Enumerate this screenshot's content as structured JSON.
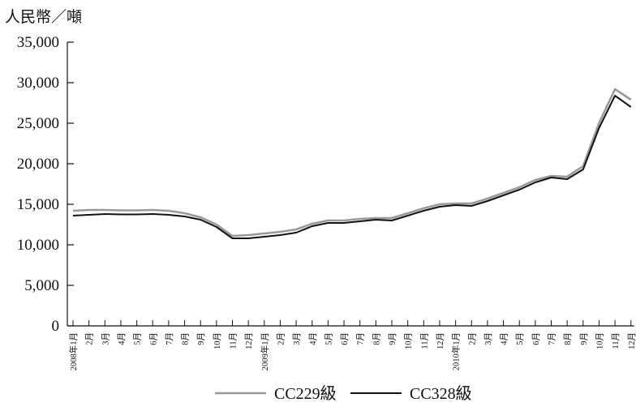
{
  "chart_data": {
    "type": "line",
    "unit_label": "人民幣／噸",
    "yticks": [
      "0",
      "5,000",
      "10,000",
      "15,000",
      "20,000",
      "25,000",
      "30,000",
      "35,000"
    ],
    "ylim": [
      0,
      35000
    ],
    "x": [
      "2008年1月",
      "2月",
      "3月",
      "4月",
      "5月",
      "6月",
      "7月",
      "8月",
      "9月",
      "10月",
      "11月",
      "12月",
      "2009年1月",
      "2月",
      "3月",
      "4月",
      "5月",
      "6月",
      "7月",
      "8月",
      "9月",
      "10月",
      "11月",
      "12月",
      "2010年1月",
      "2月",
      "3月",
      "4月",
      "5月",
      "6月",
      "7月",
      "8月",
      "9月",
      "10月",
      "11月",
      "12月"
    ],
    "series": [
      {
        "name": "CC229級",
        "color": "#999999",
        "values": [
          14200,
          14300,
          14300,
          14250,
          14250,
          14300,
          14200,
          13900,
          13400,
          12500,
          11100,
          11200,
          11400,
          11600,
          11900,
          12600,
          13000,
          13000,
          13200,
          13300,
          13300,
          13900,
          14500,
          15000,
          15100,
          15100,
          15700,
          16400,
          17100,
          18000,
          18500,
          18400,
          19700,
          25000,
          29200,
          27900
        ]
      },
      {
        "name": "CC328級",
        "color": "#111111",
        "values": [
          13600,
          13700,
          13800,
          13750,
          13750,
          13800,
          13700,
          13500,
          13100,
          12200,
          10800,
          10800,
          11000,
          11200,
          11500,
          12300,
          12700,
          12700,
          12900,
          13100,
          13000,
          13600,
          14200,
          14700,
          14900,
          14800,
          15400,
          16100,
          16800,
          17700,
          18300,
          18100,
          19300,
          24400,
          28400,
          27000
        ]
      }
    ],
    "legend_position": "bottom-center",
    "grid": false
  }
}
